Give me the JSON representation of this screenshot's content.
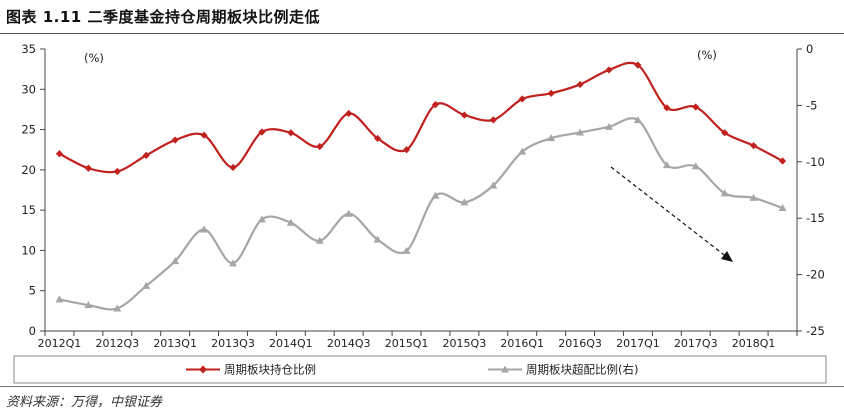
{
  "figure": {
    "title": "图表 1.11 二季度基金持仓周期板块比例走低",
    "source": "资料来源：万得，中银证券"
  },
  "chart_data": {
    "type": "line",
    "x": [
      "2012Q1",
      "2012Q2",
      "2012Q3",
      "2012Q4",
      "2013Q1",
      "2013Q2",
      "2013Q3",
      "2013Q4",
      "2014Q1",
      "2014Q2",
      "2014Q3",
      "2014Q4",
      "2015Q1",
      "2015Q2",
      "2015Q3",
      "2015Q4",
      "2016Q1",
      "2016Q2",
      "2016Q3",
      "2016Q4",
      "2017Q1",
      "2017Q2",
      "2017Q3",
      "2017Q4",
      "2018Q1",
      "2018Q2"
    ],
    "x_tick_labels": [
      "2012Q1",
      "2012Q3",
      "2013Q1",
      "2013Q3",
      "2014Q1",
      "2014Q3",
      "2015Q1",
      "2015Q3",
      "2016Q1",
      "2016Q3",
      "2017Q1",
      "2017Q3",
      "2018Q1"
    ],
    "y_left": {
      "unit": "(%)",
      "ylim": [
        0,
        35
      ],
      "ticks": [
        "0",
        "5",
        "10",
        "15",
        "20",
        "25",
        "30",
        "35"
      ]
    },
    "y_right": {
      "unit": "(%)",
      "ylim": [
        -25,
        0
      ],
      "ticks": [
        "-25",
        "-20",
        "-15",
        "-10",
        "-5",
        "0"
      ]
    },
    "series": [
      {
        "name": "周期板块持仓比例",
        "axis": "left",
        "color": "#c0211f",
        "marker": "diamond",
        "values": [
          22.0,
          20.2,
          19.8,
          21.8,
          23.7,
          24.3,
          20.3,
          24.7,
          24.6,
          22.9,
          27.0,
          23.9,
          22.5,
          28.1,
          26.8,
          26.2,
          28.8,
          29.5,
          30.6,
          32.4,
          33.0,
          27.7,
          27.8,
          24.6,
          23.0,
          21.1
        ]
      },
      {
        "name": "周期板块超配比例(右)",
        "axis": "right",
        "color": "#a6a6a6",
        "marker": "triangle",
        "values": [
          -22.2,
          -22.7,
          -23.0,
          -21.0,
          -18.8,
          -16.0,
          -19.0,
          -15.1,
          -15.4,
          -17.0,
          -14.6,
          -16.9,
          -17.9,
          -13.0,
          -13.6,
          -12.1,
          -9.1,
          -7.9,
          -7.4,
          -6.9,
          -6.3,
          -10.3,
          -10.4,
          -12.8,
          -13.2,
          -14.1
        ]
      }
    ],
    "annotation": "dashed-downward-arrow",
    "grid": false,
    "legend_position": "bottom"
  }
}
